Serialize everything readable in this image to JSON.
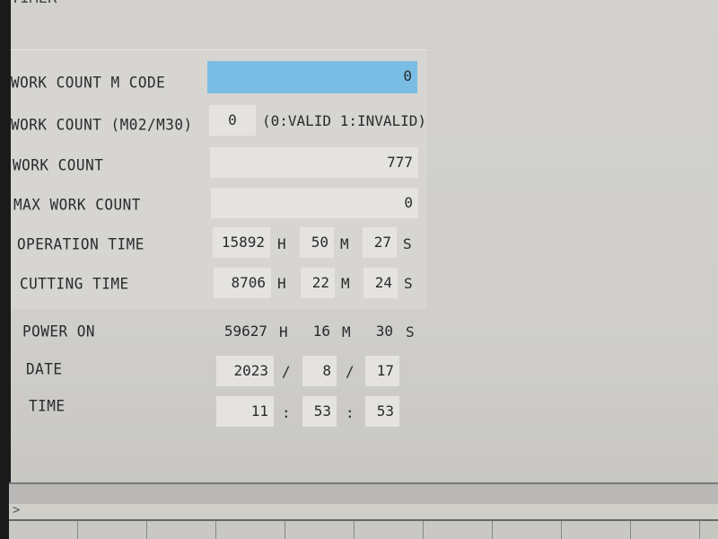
{
  "screen_title": "TIMER",
  "rows": {
    "work_count_m_code": {
      "label": "WORK COUNT M CODE",
      "value": "0"
    },
    "work_count_m02_m30": {
      "label": "WORK COUNT (M02/M30)",
      "value": "0",
      "note": "(0:VALID 1:INVALID)"
    },
    "work_count": {
      "label": "WORK COUNT",
      "value": "777"
    },
    "max_work_count": {
      "label": "MAX WORK COUNT",
      "value": "0"
    },
    "operation_time": {
      "label": "OPERATION TIME",
      "h": "15892",
      "m": "50",
      "s": "27"
    },
    "cutting_time": {
      "label": "CUTTING TIME",
      "h": "8706",
      "m": "22",
      "s": "24"
    },
    "power_on": {
      "label": "POWER ON",
      "h": "59627",
      "m": "16",
      "s": "30"
    },
    "date": {
      "label": "DATE",
      "y": "2023",
      "mo": "8",
      "d": "17",
      "sep": "/"
    },
    "time": {
      "label": "TIME",
      "h": "11",
      "m": "53",
      "s": "53",
      "sep": ":"
    }
  },
  "units": {
    "h": "H",
    "m": "M",
    "s": "S"
  },
  "prompt": ">",
  "colors": {
    "highlight": "#79bde4",
    "field": "#e4e3df"
  }
}
